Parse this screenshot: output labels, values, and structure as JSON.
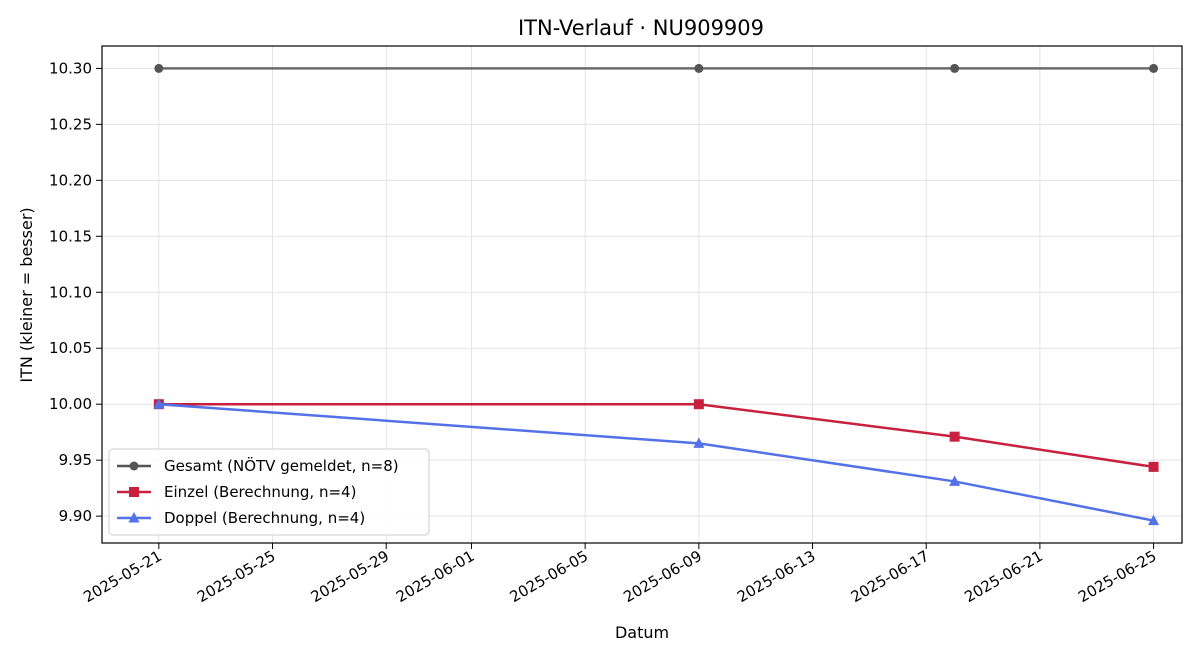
{
  "chart_data": {
    "type": "line",
    "title": "ITN-Verlauf · NU909909",
    "xlabel": "Datum",
    "ylabel": "ITN  (kleiner = besser)",
    "x_type": "date",
    "xlim": [
      "2025-05-19",
      "2025-06-26"
    ],
    "ylim": [
      9.876,
      10.32
    ],
    "xticks": [
      "2025-05-21",
      "2025-05-25",
      "2025-05-29",
      "2025-06-01",
      "2025-06-05",
      "2025-06-09",
      "2025-06-13",
      "2025-06-17",
      "2025-06-21",
      "2025-06-25"
    ],
    "yticks": [
      9.9,
      9.95,
      10.0,
      10.05,
      10.1,
      10.15,
      10.2,
      10.25,
      10.3
    ],
    "grid": true,
    "legend_position": "lower-left",
    "series": [
      {
        "name": "Gesamt (NÖTV gemeldet, n=8)",
        "color": "#555555",
        "marker": "circle",
        "points": [
          {
            "x": "2025-05-21",
            "y": 10.3
          },
          {
            "x": "2025-06-09",
            "y": 10.3
          },
          {
            "x": "2025-06-18",
            "y": 10.3
          },
          {
            "x": "2025-06-25",
            "y": 10.3
          }
        ]
      },
      {
        "name": "Einzel (Berechnung, n=4)",
        "color": "#c8203f",
        "marker": "square",
        "points": [
          {
            "x": "2025-05-21",
            "y": 10.0
          },
          {
            "x": "2025-06-09",
            "y": 10.0
          },
          {
            "x": "2025-06-18",
            "y": 9.971
          },
          {
            "x": "2025-06-25",
            "y": 9.944
          }
        ]
      },
      {
        "name": "Doppel (Berechnung, n=4)",
        "color": "#5472e8",
        "marker": "triangle",
        "points": [
          {
            "x": "2025-05-21",
            "y": 10.0
          },
          {
            "x": "2025-06-09",
            "y": 9.965
          },
          {
            "x": "2025-06-18",
            "y": 9.931
          },
          {
            "x": "2025-06-25",
            "y": 9.896
          }
        ]
      }
    ]
  }
}
